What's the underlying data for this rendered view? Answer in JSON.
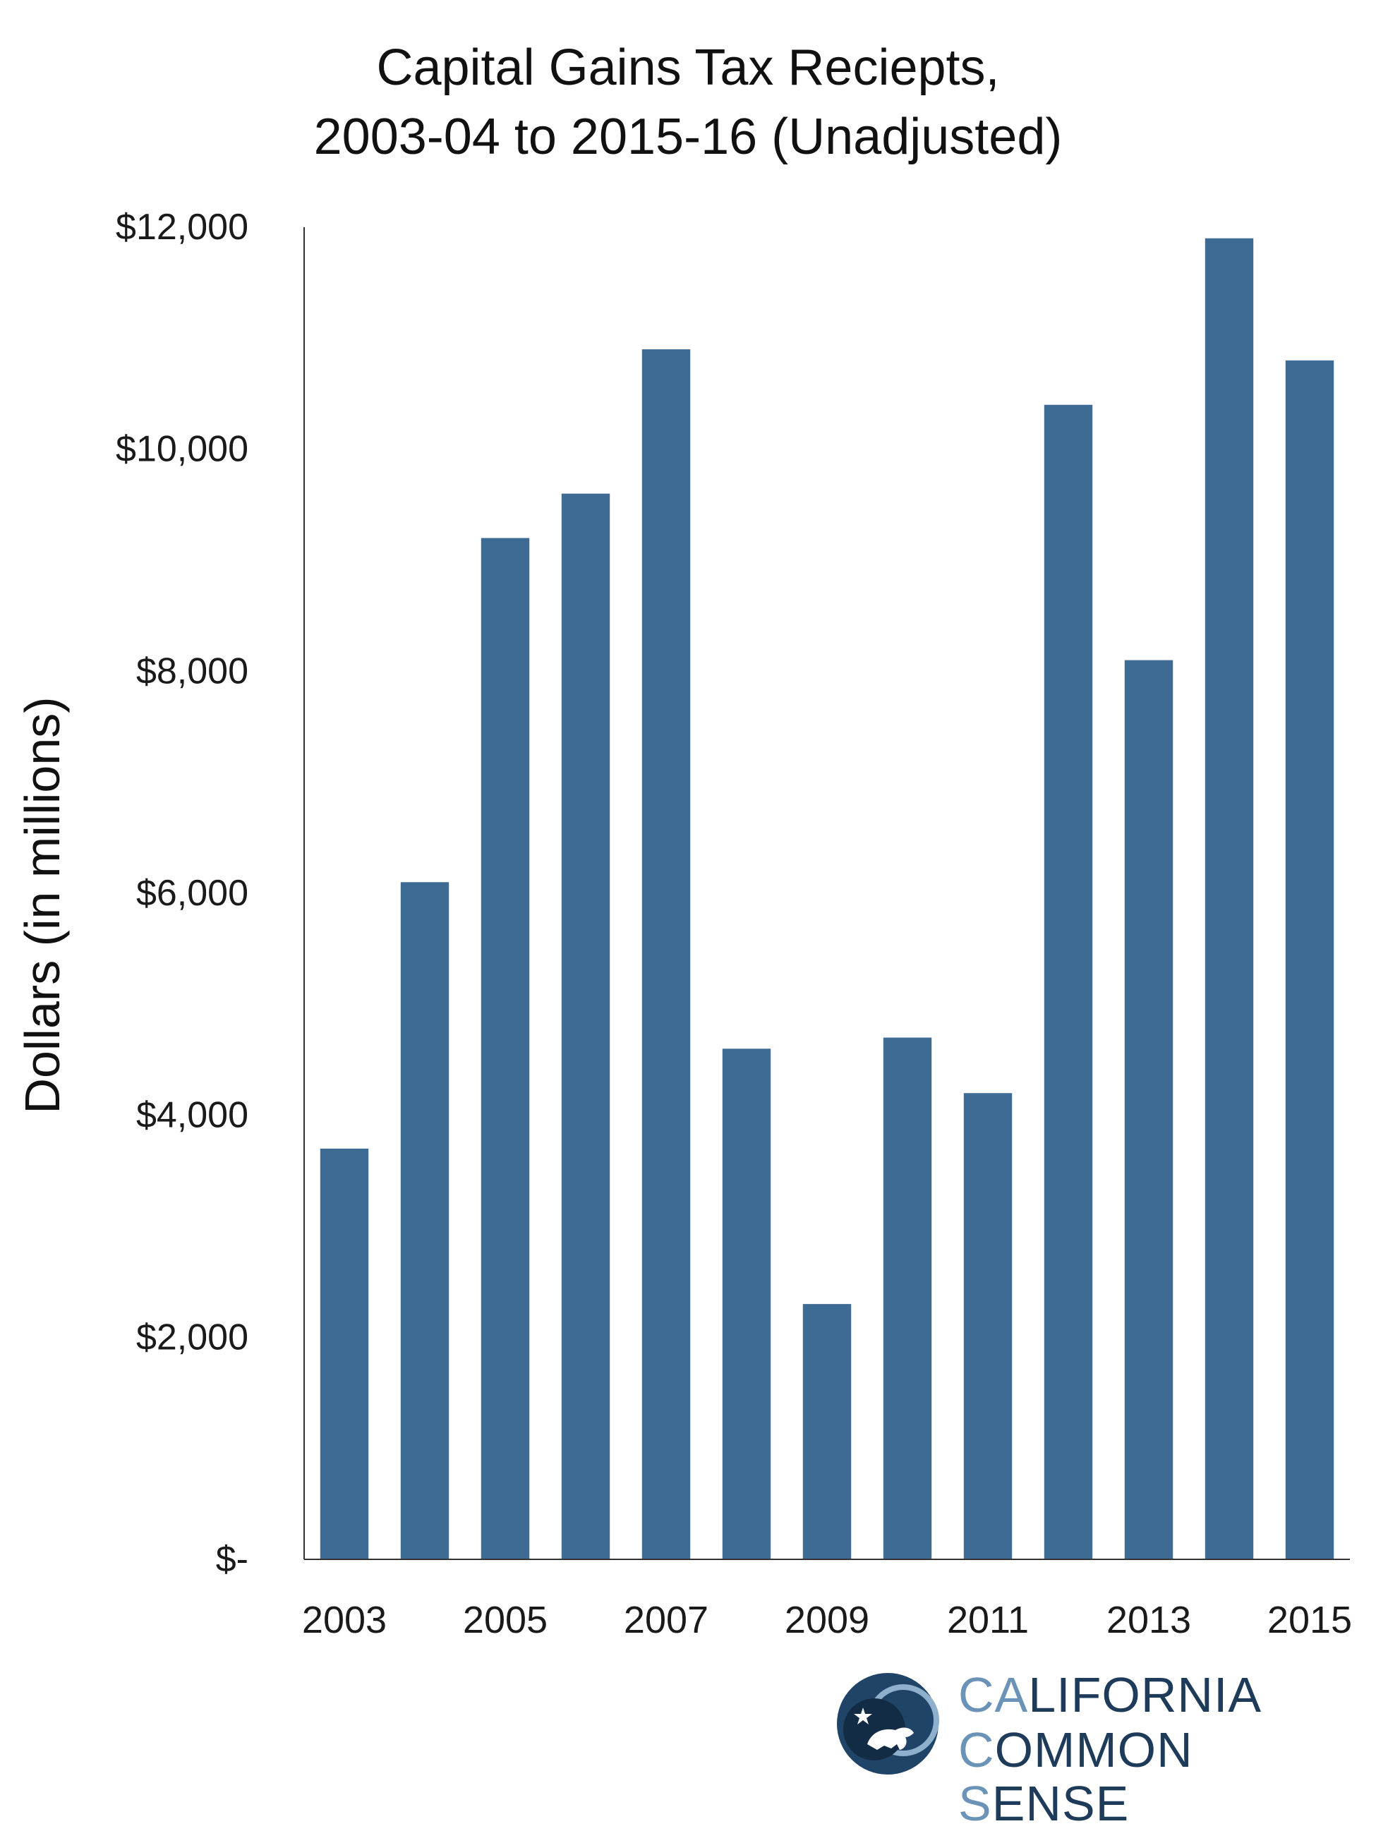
{
  "title_line1": "Capital Gains Tax Reciepts,",
  "title_line2": "2003-04 to 2015-16 (Unadjusted)",
  "colors": {
    "bar": "#3e6b93",
    "axis": "#333333",
    "text": "#1a1a1a"
  },
  "chart_data": {
    "type": "bar",
    "title": "Capital Gains Tax Reciepts, 2003-04 to 2015-16 (Unadjusted)",
    "ylabel": "Dollars (in millions)",
    "xlabel": "",
    "categories": [
      "2003",
      "2004",
      "2005",
      "2006",
      "2007",
      "2008",
      "2009",
      "2010",
      "2011",
      "2012",
      "2013",
      "2014",
      "2015"
    ],
    "values": [
      3700,
      6100,
      9200,
      9600,
      10900,
      4600,
      2300,
      4700,
      4200,
      10400,
      8100,
      11900,
      10800
    ],
    "x_tick_labels": [
      "2003",
      "",
      "2005",
      "",
      "2007",
      "",
      "2009",
      "",
      "2011",
      "",
      "2013",
      "",
      "2015"
    ],
    "y_ticks": [
      0,
      2000,
      4000,
      6000,
      8000,
      10000,
      12000
    ],
    "y_tick_labels": [
      "$-",
      "$2,000",
      "$4,000",
      "$6,000",
      "$8,000",
      "$10,000",
      "$12,000"
    ],
    "ylim": [
      0,
      12000
    ],
    "grid": false,
    "legend": "none"
  },
  "logo": {
    "line1_a": "CA",
    "line1_b": "LIFORNIA",
    "line2_a": "C",
    "line2_b": "OMMON ",
    "line2_c": "S",
    "line2_d": "ENSE"
  }
}
